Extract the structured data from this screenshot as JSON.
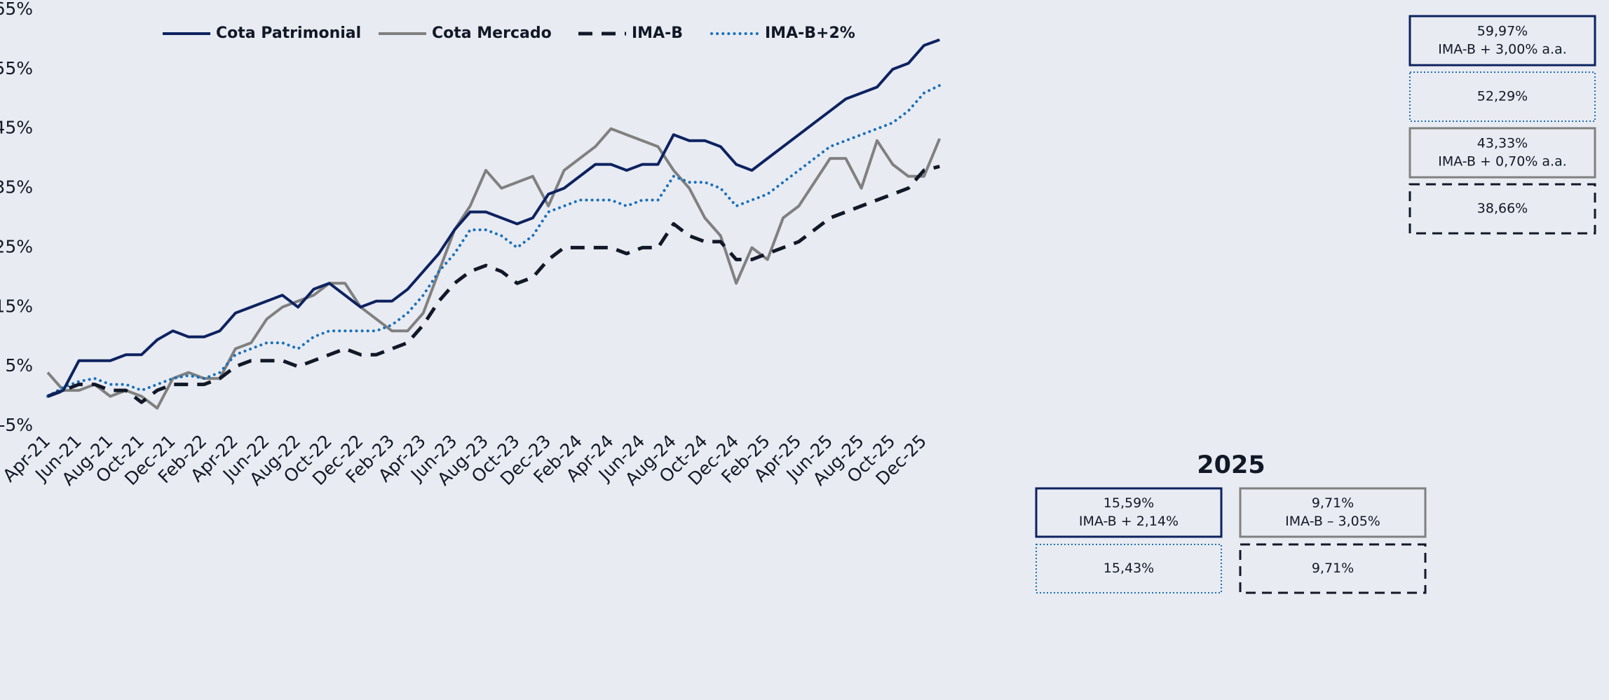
{
  "chart_data": {
    "type": "line",
    "categories": [
      "Apr-21",
      null,
      "Jun-21",
      null,
      "Aug-21",
      null,
      "Oct-21",
      null,
      "Dec-21",
      null,
      "Feb-22",
      null,
      "Apr-22",
      null,
      "Jun-22",
      null,
      "Aug-22",
      null,
      "Oct-22",
      null,
      "Dec-22",
      null,
      "Feb-23",
      null,
      "Apr-23",
      null,
      "Jun-23",
      null,
      "Aug-23",
      null,
      "Oct-23",
      null,
      "Dec-23",
      null,
      "Feb-24",
      null,
      "Apr-24",
      null,
      "Jun-24",
      null,
      "Aug-24",
      null,
      "Oct-24",
      null,
      "Dec-24",
      null,
      "Feb-25",
      null,
      "Apr-25",
      null,
      "Jun-25",
      null,
      "Aug-25",
      null,
      "Oct-25",
      null,
      "Dec-25",
      null
    ],
    "series": [
      {
        "name": "Cota Patrimonial",
        "color": "#0d2260",
        "dash": "solid",
        "values": [
          0,
          1,
          6,
          6,
          6,
          7,
          7,
          9.5,
          11,
          10,
          10,
          11,
          14,
          15,
          16,
          17,
          15,
          18,
          19,
          17,
          15,
          16,
          16,
          18,
          21,
          24,
          28,
          31,
          31,
          30,
          29,
          30,
          34,
          35,
          37,
          39,
          39,
          38,
          39,
          39,
          44,
          43,
          43,
          42,
          39,
          38,
          40,
          42,
          44,
          46,
          48,
          50,
          51,
          52,
          55,
          56,
          59,
          59.97
        ]
      },
      {
        "name": "Cota Mercado",
        "color": "#808080",
        "dash": "solid",
        "values": [
          4,
          1,
          1,
          2,
          0,
          1,
          0,
          -2,
          3,
          4,
          3,
          3,
          8,
          9,
          13,
          15,
          16,
          17,
          19,
          19,
          15,
          13,
          11,
          11,
          14,
          21,
          28,
          32,
          38,
          35,
          36,
          37,
          32,
          38,
          40,
          42,
          45,
          44,
          43,
          42,
          38,
          35,
          30,
          27,
          19,
          25,
          23,
          30,
          32,
          36,
          40,
          40,
          35,
          43,
          39,
          37,
          37,
          43.33
        ]
      },
      {
        "name": "IMA-B",
        "color": "#111827",
        "dash": "dashed",
        "values": [
          0,
          1,
          2,
          2,
          1,
          1,
          -1,
          1,
          2,
          2,
          2,
          3,
          5,
          6,
          6,
          6,
          5,
          6,
          7,
          8,
          7,
          7,
          8,
          9,
          12,
          16,
          19,
          21,
          22,
          21,
          19,
          20,
          23,
          25,
          25,
          25,
          25,
          24,
          25,
          25,
          29,
          27,
          26,
          26,
          23,
          23,
          24,
          25,
          26,
          28,
          30,
          31,
          32,
          33,
          34,
          35,
          38,
          38.66
        ]
      },
      {
        "name": "IMA-B+2%",
        "color": "#1a6fba",
        "dash": "dotted",
        "values": [
          0,
          1.5,
          2.5,
          3,
          2,
          2,
          1,
          2,
          3,
          3.5,
          3,
          4,
          7,
          8,
          9,
          9,
          8,
          10,
          11,
          11,
          11,
          11,
          12,
          14,
          17,
          21,
          24,
          28,
          28,
          27,
          25,
          27,
          31,
          32,
          33,
          33,
          33,
          32,
          33,
          33,
          37,
          36,
          36,
          35,
          32,
          33,
          34,
          36,
          38,
          40,
          42,
          43,
          44,
          45,
          46,
          48,
          51,
          52.29
        ]
      }
    ],
    "ylim": [
      -5,
      65
    ],
    "yticks": [
      {
        "value": -5,
        "label": "-5%"
      },
      {
        "value": 5,
        "label": "5%"
      },
      {
        "value": 15,
        "label": "15%"
      },
      {
        "value": 25,
        "label": "25%"
      },
      {
        "value": 35,
        "label": "35%"
      },
      {
        "value": 45,
        "label": "45%"
      },
      {
        "value": 55,
        "label": "55%"
      },
      {
        "value": 65,
        "label": "65%"
      }
    ],
    "grid": false,
    "legend": "top-left",
    "boxes": [
      {
        "lines": [
          "59,97%",
          "IMA-B + 3,00% a.a."
        ],
        "color": "#0d2260",
        "border": "solid"
      },
      {
        "lines": [
          "52,29%"
        ],
        "color": "#1a6fba",
        "border": "dotted"
      },
      {
        "lines": [
          "43,33%",
          "IMA-B + 0,70% a.a."
        ],
        "color": "#808080",
        "border": "solid"
      },
      {
        "lines": [
          "38,66%"
        ],
        "color": "#111827",
        "border": "dashed"
      }
    ],
    "year_panel": {
      "title": "2025",
      "boxes": [
        {
          "lines": [
            "15,59%",
            "IMA-B + 2,14%"
          ],
          "color": "#0d2260",
          "border": "solid"
        },
        {
          "lines": [
            "9,71%",
            "IMA-B – 3,05%"
          ],
          "color": "#808080",
          "border": "solid"
        },
        {
          "lines": [
            "15,43%"
          ],
          "color": "#1a6fba",
          "border": "dotted"
        },
        {
          "lines": [
            "9,71%"
          ],
          "color": "#111827",
          "border": "dashed"
        }
      ]
    }
  }
}
